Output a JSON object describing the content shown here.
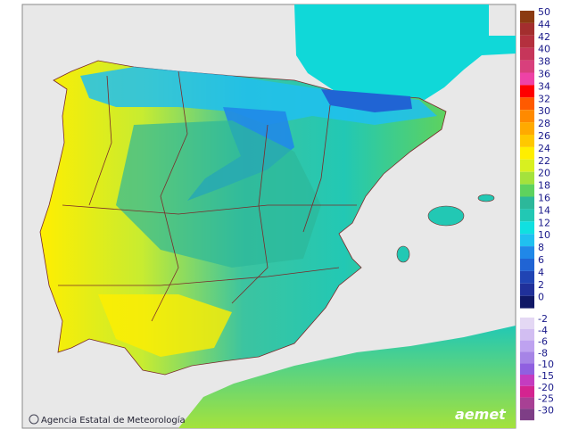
{
  "legend": {
    "warm": [
      {
        "value": 50,
        "color": "#8b3a12"
      },
      {
        "value": 44,
        "color": "#a32e2e"
      },
      {
        "value": 42,
        "color": "#b4303e"
      },
      {
        "value": 40,
        "color": "#c6365a"
      },
      {
        "value": 38,
        "color": "#d8407c"
      },
      {
        "value": 36,
        "color": "#ee42a6"
      },
      {
        "value": 34,
        "color": "#ff0000"
      },
      {
        "value": 32,
        "color": "#ff5a00"
      },
      {
        "value": 30,
        "color": "#ff8a00"
      },
      {
        "value": 28,
        "color": "#ffaa00"
      },
      {
        "value": 26,
        "color": "#ffc800"
      },
      {
        "value": 24,
        "color": "#ffee00"
      },
      {
        "value": 22,
        "color": "#d8f020"
      },
      {
        "value": 20,
        "color": "#a4e23c"
      },
      {
        "value": 18,
        "color": "#5ed25e"
      },
      {
        "value": 16,
        "color": "#2cb89a"
      },
      {
        "value": 14,
        "color": "#22c8b4"
      },
      {
        "value": 12,
        "color": "#10e0e0"
      },
      {
        "value": 10,
        "color": "#20c0f0"
      },
      {
        "value": 8,
        "color": "#2088e8"
      },
      {
        "value": 6,
        "color": "#2064d4"
      },
      {
        "value": 4,
        "color": "#2044b4"
      },
      {
        "value": 2,
        "color": "#20309a"
      },
      {
        "value": 0,
        "color": "#101866"
      }
    ],
    "cold": [
      {
        "value": -2,
        "color": "#e4d8f4"
      },
      {
        "value": -4,
        "color": "#d2bef2"
      },
      {
        "value": -6,
        "color": "#bea2f0"
      },
      {
        "value": -8,
        "color": "#a684e6"
      },
      {
        "value": -10,
        "color": "#9060e0"
      },
      {
        "value": -15,
        "color": "#c43cc0"
      },
      {
        "value": -20,
        "color": "#d42490"
      },
      {
        "value": -25,
        "color": "#a84094"
      },
      {
        "value": -30,
        "color": "#7e3e86"
      }
    ]
  },
  "credit": "Agencia Estatal de Meteorología",
  "logo": "aemet"
}
